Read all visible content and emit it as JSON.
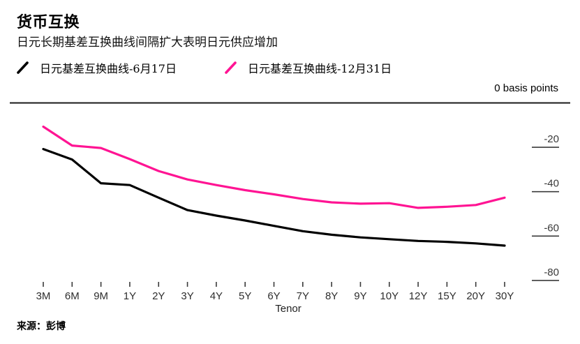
{
  "header": {
    "title": "货币互换",
    "subtitle": "日元长期基差互换曲线间隔扩大表明日元供应增加"
  },
  "axis": {
    "unit_label": "0 basis points",
    "x_label": "Tenor"
  },
  "footer": {
    "source": "来源：彭博"
  },
  "chart_data": {
    "type": "line",
    "title": "货币互换",
    "subtitle": "日元长期基差互换曲线间隔扩大表明日元供应增加",
    "xlabel": "Tenor",
    "ylabel": "basis points",
    "unit_label": "0 basis points",
    "categories": [
      "3M",
      "6M",
      "9M",
      "1Y",
      "2Y",
      "3Y",
      "4Y",
      "5Y",
      "6Y",
      "7Y",
      "8Y",
      "9Y",
      "10Y",
      "12Y",
      "15Y",
      "20Y",
      "30Y"
    ],
    "series": [
      {
        "name": "日元基差互换曲线-6月17日",
        "color": "#000000",
        "values": [
          -20.8,
          -25.5,
          -36.2,
          -37.0,
          -42.7,
          -48.3,
          -50.8,
          -53.0,
          -55.4,
          -57.8,
          -59.4,
          -60.6,
          -61.4,
          -62.2,
          -62.6,
          -63.3,
          -64.3
        ]
      },
      {
        "name": "日元基差互换曲线-12月31日",
        "color": "#ff1493",
        "values": [
          -10.7,
          -19.2,
          -20.3,
          -25.3,
          -30.7,
          -34.5,
          -37.0,
          -39.3,
          -41.2,
          -43.3,
          -44.8,
          -45.4,
          -45.2,
          -47.3,
          -46.8,
          -46.0,
          -42.7
        ]
      }
    ],
    "ylim": [
      -85,
      0
    ],
    "y_ticks": [
      -20,
      -40,
      -60,
      -80
    ],
    "y_tick_labels": [
      "-20",
      "-40",
      "-60",
      "-80"
    ],
    "grid": false,
    "legend_position": "top-left",
    "axis_color": "#3a3a3a",
    "baseline_color": "#1a1a1a"
  }
}
